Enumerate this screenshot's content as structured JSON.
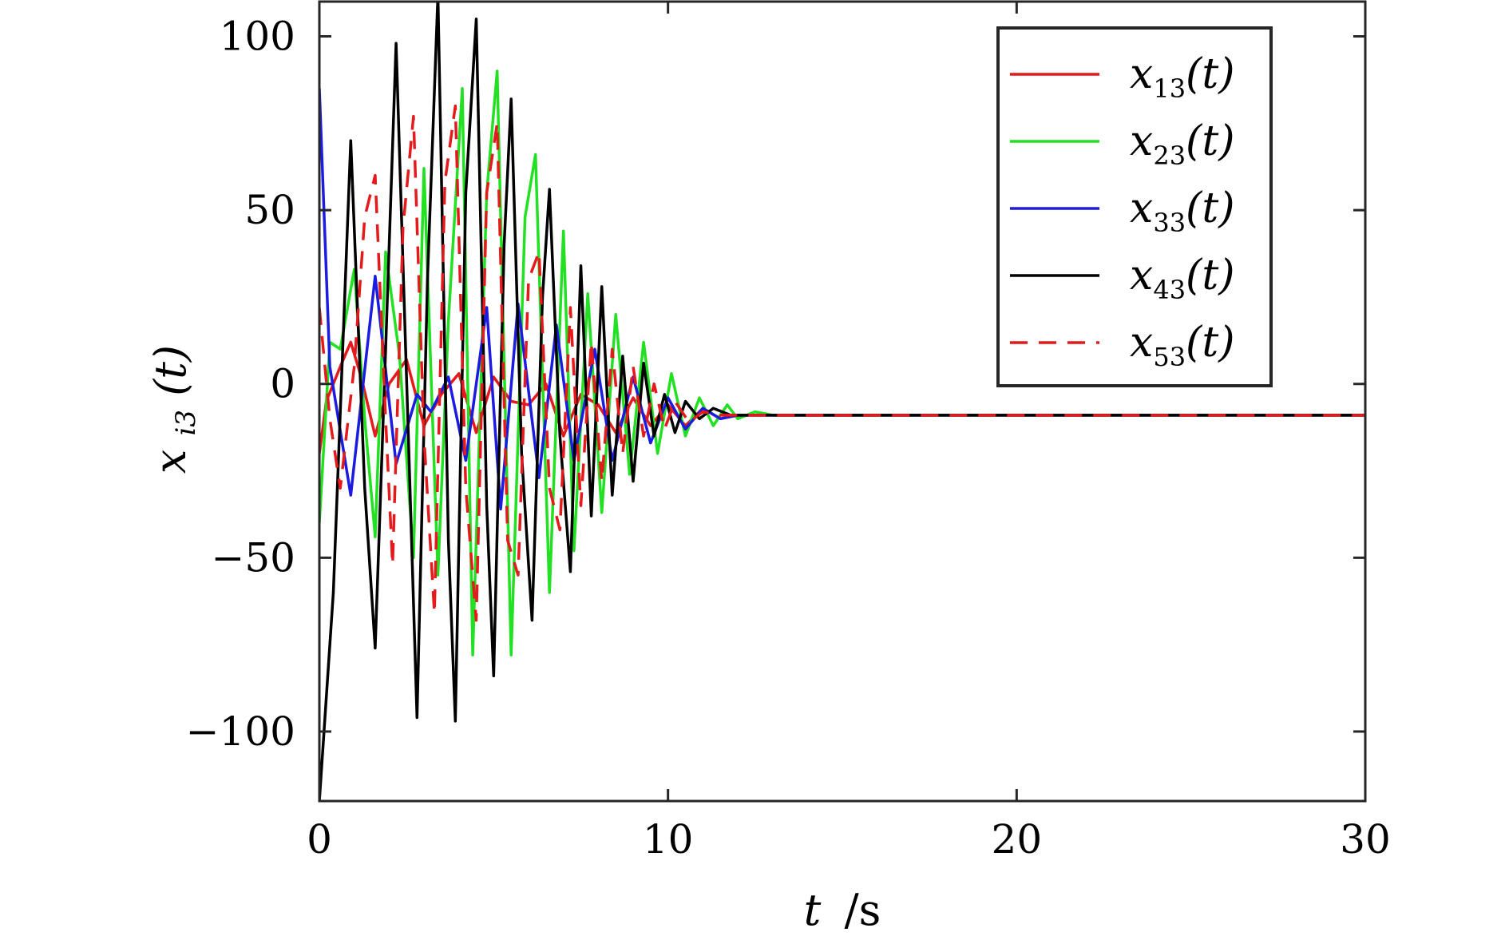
{
  "chart_data": {
    "type": "line",
    "title": "",
    "xlabel": "t /s",
    "ylabel": "x_i3(t)",
    "xlim": [
      0,
      30
    ],
    "ylim": [
      -120,
      110
    ],
    "x_ticks": [
      0,
      10,
      20,
      30
    ],
    "x_tick_labels": [
      "0",
      "10",
      "20",
      "30"
    ],
    "y_ticks": [
      -100,
      -50,
      0,
      50,
      100
    ],
    "y_tick_labels": [
      "−100",
      "−50",
      "0",
      "50",
      "100"
    ],
    "grid": false,
    "legend_position": "top-right",
    "series": [
      {
        "name": "x13(t)",
        "color": "#e41a1c",
        "dash": "solid",
        "x": [
          0,
          0.2,
          0.6,
          0.9,
          1.2,
          1.6,
          2.0,
          2.5,
          3.0,
          3.5,
          4.0,
          4.5,
          5.0,
          5.5,
          6.0,
          6.5,
          7.0,
          7.5,
          8.0,
          8.5,
          9.0,
          9.5,
          10.0,
          10.5,
          11.0,
          11.5,
          12.0,
          13.0,
          15.0,
          20.0,
          25.0,
          30.0
        ],
        "y": [
          -20,
          -5,
          5,
          12,
          2,
          -15,
          0,
          7,
          -12,
          -3,
          3,
          -14,
          2,
          -5,
          -6,
          0,
          -15,
          -3,
          -6,
          -14,
          -4,
          -12,
          -6,
          -12,
          -7,
          -10,
          -9,
          -9,
          -9,
          -9,
          -9,
          -9
        ]
      },
      {
        "name": "x23(t)",
        "color": "#22e022",
        "dash": "solid",
        "x": [
          0,
          0.3,
          0.6,
          1.0,
          1.3,
          1.6,
          1.9,
          2.3,
          2.7,
          3.0,
          3.4,
          3.7,
          4.1,
          4.4,
          4.8,
          5.1,
          5.5,
          5.9,
          6.2,
          6.6,
          7.0,
          7.3,
          7.7,
          8.1,
          8.5,
          8.9,
          9.3,
          9.7,
          10.1,
          10.5,
          10.9,
          11.3,
          11.7,
          12.0,
          12.5,
          13.0,
          15.0,
          20.0,
          25.0,
          30.0
        ],
        "y": [
          -40,
          12,
          10,
          33,
          -10,
          -44,
          38,
          8,
          -50,
          62,
          -55,
          18,
          85,
          -78,
          55,
          90,
          -78,
          48,
          66,
          -60,
          44,
          -48,
          26,
          -37,
          20,
          -26,
          12,
          -20,
          3,
          -15,
          -4,
          -12,
          -6,
          -10,
          -8,
          -9,
          -9,
          -9,
          -9,
          -9
        ]
      },
      {
        "name": "x33(t)",
        "color": "#1c1ce0",
        "dash": "solid",
        "x": [
          0,
          0.3,
          0.9,
          1.6,
          2.2,
          2.8,
          3.2,
          3.7,
          4.2,
          4.8,
          5.2,
          5.7,
          6.3,
          6.8,
          7.3,
          7.9,
          8.4,
          9.0,
          9.5,
          10.0,
          10.5,
          11.0,
          11.5,
          12.0,
          13.0,
          15.0,
          20.0,
          25.0,
          30.0
        ],
        "y": [
          85,
          5,
          -32,
          31,
          -23,
          -3,
          -8,
          2,
          -22,
          22,
          -36,
          23,
          -27,
          17,
          -22,
          10,
          -22,
          2,
          -17,
          -4,
          -13,
          -7,
          -10,
          -9,
          -9,
          -9,
          -9,
          -9,
          -9
        ]
      },
      {
        "name": "x43(t)",
        "color": "#000000",
        "dash": "solid",
        "x": [
          0,
          0.4,
          0.9,
          1.3,
          1.6,
          1.9,
          2.2,
          2.6,
          2.8,
          3.1,
          3.4,
          3.7,
          3.9,
          4.2,
          4.5,
          4.8,
          5.0,
          5.3,
          5.5,
          5.8,
          6.1,
          6.4,
          6.6,
          6.9,
          7.2,
          7.5,
          7.8,
          8.1,
          8.4,
          8.7,
          9.0,
          9.3,
          9.6,
          9.9,
          10.2,
          10.5,
          10.9,
          11.3,
          11.8,
          12.5,
          13.0,
          15.0,
          20.0,
          25.0,
          30.0
        ],
        "y": [
          -120,
          -60,
          70,
          -30,
          -76,
          10,
          98,
          -30,
          -96,
          30,
          112,
          -45,
          -97,
          55,
          105,
          -35,
          -84,
          40,
          82,
          -20,
          -68,
          25,
          56,
          -15,
          -54,
          34,
          -38,
          28,
          -32,
          8,
          -28,
          6,
          -15,
          -3,
          -14,
          -5,
          -10,
          -7,
          -9,
          -9,
          -9,
          -9,
          -9,
          -9,
          -9
        ]
      },
      {
        "name": "x53(t)",
        "color": "#e41a1c",
        "dash": "dashed",
        "x": [
          0,
          0.3,
          0.6,
          1.0,
          1.3,
          1.6,
          1.9,
          2.1,
          2.4,
          2.7,
          3.0,
          3.3,
          3.6,
          3.9,
          4.2,
          4.5,
          4.8,
          5.1,
          5.4,
          5.7,
          6.0,
          6.3,
          6.6,
          6.9,
          7.2,
          7.5,
          7.8,
          8.1,
          8.4,
          8.7,
          9.0,
          9.3,
          9.6,
          9.9,
          10.2,
          10.6,
          11.0,
          11.5,
          12.0,
          13.0,
          15.0,
          20.0,
          25.0,
          30.0
        ],
        "y": [
          22,
          -10,
          -30,
          5,
          48,
          60,
          -10,
          -52,
          45,
          77,
          -15,
          -66,
          58,
          80,
          -30,
          -68,
          55,
          75,
          -45,
          -55,
          30,
          38,
          -30,
          -42,
          22,
          -35,
          12,
          -28,
          10,
          -20,
          5,
          -15,
          0,
          -13,
          -5,
          -11,
          -8,
          -9,
          -9,
          -9,
          -9,
          -9,
          -9,
          -9
        ]
      }
    ]
  },
  "legend": {
    "items": [
      {
        "var": "x",
        "sub": "13",
        "arg": "(t)"
      },
      {
        "var": "x",
        "sub": "23",
        "arg": "(t)"
      },
      {
        "var": "x",
        "sub": "33",
        "arg": "(t)"
      },
      {
        "var": "x",
        "sub": "43",
        "arg": "(t)"
      },
      {
        "var": "x",
        "sub": "53",
        "arg": "(t)"
      }
    ]
  },
  "axis_text": {
    "xlabel_var": "t",
    "xlabel_unit": "/s",
    "ylabel_var": "x",
    "ylabel_sub": "i3",
    "ylabel_arg": "(t)"
  }
}
